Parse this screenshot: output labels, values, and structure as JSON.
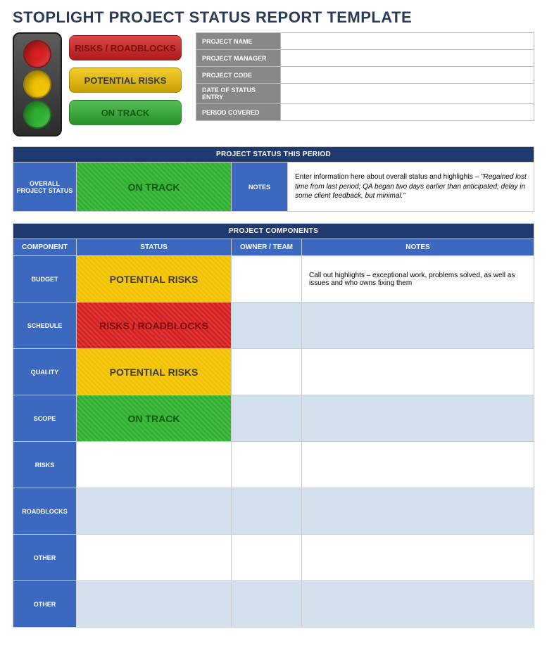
{
  "colors": {
    "title_text": "#2b3a55",
    "red": "#d62020",
    "yellow": "#f2c200",
    "green": "#2fb12f",
    "red_text": "#7a0e0e",
    "yellow_text": "#3a3a3a",
    "green_text": "#0e5a0e",
    "header_blue_dark": "#1f3a6e",
    "header_blue": "#3d68c0",
    "meta_grey": "#888888",
    "alt_cell": "#d3e0ee",
    "stoplight_body": "#3a3a3a"
  },
  "page": {
    "title": "STOPLIGHT PROJECT STATUS REPORT TEMPLATE"
  },
  "legend": {
    "risks_label": "RISKS / ROADBLOCKS",
    "potential_label": "POTENTIAL RISKS",
    "ontrack_label": "ON TRACK"
  },
  "meta": {
    "project_name": {
      "label": "PROJECT NAME",
      "value": ""
    },
    "project_manager": {
      "label": "PROJECT MANAGER",
      "value": ""
    },
    "project_code": {
      "label": "PROJECT CODE",
      "value": ""
    },
    "date_of_status_entry": {
      "label": "DATE OF STATUS ENTRY",
      "value": ""
    },
    "period_covered": {
      "label": "PERIOD COVERED",
      "value": ""
    }
  },
  "status_period": {
    "section_title": "PROJECT STATUS THIS PERIOD",
    "row_label": "OVERALL PROJECT STATUS",
    "status_text": "ON TRACK",
    "status_bg": "#2fb12f",
    "status_fg": "#0e5a0e",
    "notes_label": "NOTES",
    "notes_lead": "Enter information here about overall status and highlights – ",
    "notes_italic": "\"Regained lost time from last period; QA began two days earlier than anticipated; delay in some client feedback, but minimal.\""
  },
  "components": {
    "section_title": "PROJECT COMPONENTS",
    "columns": {
      "component": "COMPONENT",
      "status": "STATUS",
      "owner": "OWNER / TEAM",
      "notes": "NOTES"
    },
    "rows": [
      {
        "label": "BUDGET",
        "status_text": "POTENTIAL RISKS",
        "status_bg": "#f2c200",
        "status_fg": "#3a3a3a",
        "owner": "",
        "notes": "Call out highlights – exceptional work, problems solved, as well as issues and who owns fixing them",
        "alt": false
      },
      {
        "label": "SCHEDULE",
        "status_text": "RISKS / ROADBLOCKS",
        "status_bg": "#d62020",
        "status_fg": "#7a0e0e",
        "owner": "",
        "notes": "",
        "alt": true
      },
      {
        "label": "QUALITY",
        "status_text": "POTENTIAL RISKS",
        "status_bg": "#f2c200",
        "status_fg": "#3a3a3a",
        "owner": "",
        "notes": "",
        "alt": false
      },
      {
        "label": "SCOPE",
        "status_text": "ON TRACK",
        "status_bg": "#2fb12f",
        "status_fg": "#0e5a0e",
        "owner": "",
        "notes": "",
        "alt": true
      },
      {
        "label": "RISKS",
        "status_text": "",
        "status_bg": "",
        "status_fg": "",
        "owner": "",
        "notes": "",
        "alt": false
      },
      {
        "label": "ROADBLOCKS",
        "status_text": "",
        "status_bg": "",
        "status_fg": "",
        "owner": "",
        "notes": "",
        "alt": true
      },
      {
        "label": "OTHER",
        "status_text": "",
        "status_bg": "",
        "status_fg": "",
        "owner": "",
        "notes": "",
        "alt": false
      },
      {
        "label": "OTHER",
        "status_text": "",
        "status_bg": "",
        "status_fg": "",
        "owner": "",
        "notes": "",
        "alt": true
      }
    ]
  }
}
